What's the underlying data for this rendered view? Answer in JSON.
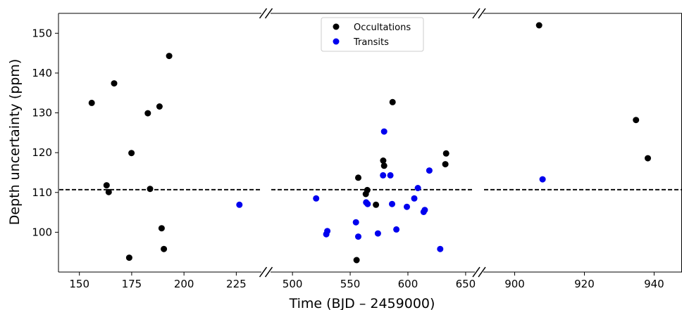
{
  "chart_data": {
    "type": "scatter",
    "title": "",
    "xlabel": "Time (BJD –  2459000)",
    "ylabel": "Depth uncertainty (ppm)",
    "ylim": [
      90,
      155
    ],
    "yticks": [
      100,
      110,
      120,
      130,
      140,
      150
    ],
    "grid": false,
    "legend_position": "top-center",
    "broken_x_axis": true,
    "reference_line": {
      "y": 110.7,
      "style": "dashed",
      "color": "#000000"
    },
    "panels": [
      {
        "xlim": [
          140,
          237
        ],
        "xticks": [
          150,
          175,
          200,
          225
        ]
      },
      {
        "xlim": [
          481,
          658
        ],
        "xticks": [
          500,
          550,
          600,
          650
        ]
      },
      {
        "xlim": [
          891,
          948
        ],
        "xticks": [
          900,
          920,
          940
        ]
      }
    ],
    "series": [
      {
        "name": "Occultations",
        "color": "#000000",
        "points": [
          [
            155.9,
            132.5
          ],
          [
            163.0,
            111.8
          ],
          [
            164.0,
            110.1
          ],
          [
            166.6,
            137.4
          ],
          [
            173.8,
            93.6
          ],
          [
            174.9,
            119.9
          ],
          [
            182.7,
            129.9
          ],
          [
            183.8,
            110.9
          ],
          [
            188.3,
            131.6
          ],
          [
            189.3,
            101.0
          ],
          [
            190.4,
            95.8
          ],
          [
            192.9,
            144.3
          ],
          [
            555.5,
            93.0
          ],
          [
            557.0,
            113.7
          ],
          [
            563.5,
            109.6
          ],
          [
            564.8,
            110.6
          ],
          [
            572.3,
            106.9
          ],
          [
            578.6,
            118.0
          ],
          [
            579.4,
            116.7
          ],
          [
            586.7,
            132.7
          ],
          [
            632.4,
            117.1
          ],
          [
            633.1,
            119.8
          ],
          [
            907.0,
            152.0
          ],
          [
            934.8,
            128.2
          ],
          [
            938.2,
            118.6
          ]
        ]
      },
      {
        "name": "Transits",
        "color": "#0000ee",
        "points": [
          [
            226.5,
            106.9
          ],
          [
            520.5,
            108.5
          ],
          [
            529.3,
            99.5
          ],
          [
            530.2,
            100.3
          ],
          [
            555.0,
            102.5
          ],
          [
            557.0,
            98.9
          ],
          [
            563.8,
            107.5
          ],
          [
            565.1,
            107.1
          ],
          [
            574.0,
            99.7
          ],
          [
            578.5,
            114.3
          ],
          [
            579.4,
            125.3
          ],
          [
            584.8,
            114.3
          ],
          [
            586.3,
            107.1
          ],
          [
            590.0,
            100.7
          ],
          [
            599.1,
            106.4
          ],
          [
            605.5,
            108.5
          ],
          [
            608.6,
            111.1
          ],
          [
            613.6,
            105.1
          ],
          [
            614.6,
            105.6
          ],
          [
            618.6,
            115.5
          ],
          [
            628.0,
            95.8
          ],
          [
            908.0,
            113.3
          ]
        ]
      }
    ]
  }
}
